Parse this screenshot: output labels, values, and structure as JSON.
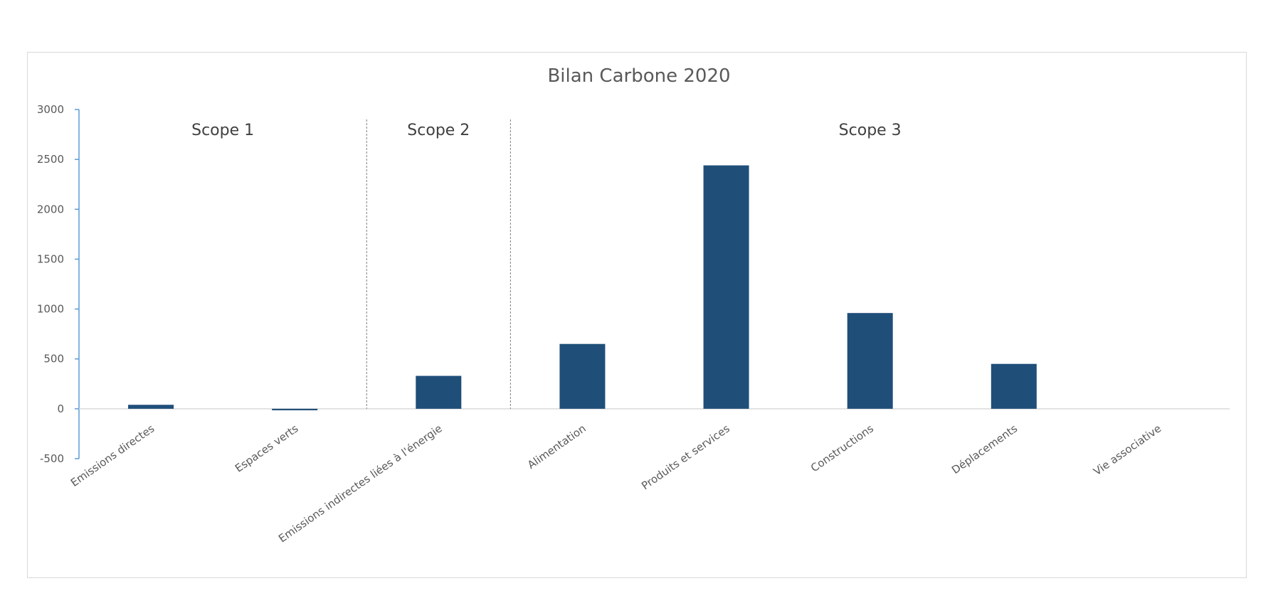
{
  "chart_data": {
    "type": "bar",
    "title": "Bilan Carbone 2020",
    "xlabel": "",
    "ylabel": "",
    "ylim": [
      -500,
      3000
    ],
    "yticks": [
      -500,
      0,
      500,
      1000,
      1500,
      2000,
      2500,
      3000
    ],
    "grid": false,
    "categories": [
      "Emissions directes",
      "Espaces verts",
      "Emissions indirectes liées à l'énergie",
      "Alimentation",
      "Produits et services",
      "Constructions",
      "Déplacements",
      "Vie associative"
    ],
    "values": [
      40,
      -15,
      330,
      650,
      2440,
      960,
      450,
      0
    ],
    "bar_color": "#1F4E79",
    "axis_color": "#5B9BD5",
    "annotations": [
      {
        "text": "Scope 1",
        "categories": [
          0,
          1
        ]
      },
      {
        "text": "Scope 2",
        "categories": [
          2,
          2
        ]
      },
      {
        "text": "Scope 3",
        "categories": [
          3,
          7
        ]
      }
    ]
  }
}
